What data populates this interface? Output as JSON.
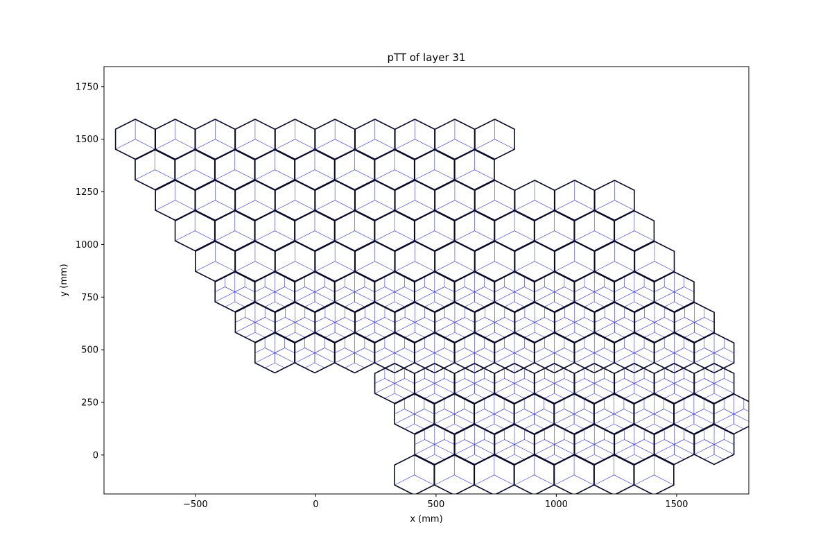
{
  "chart_data": {
    "type": "hexagonal-tiling",
    "title": "pTT of layer 31",
    "xlabel": "x (mm)",
    "ylabel": "y (mm)",
    "xlim": [
      -880,
      1800
    ],
    "ylim": [
      -185,
      1845
    ],
    "xticks": [
      {
        "value": -500,
        "label": "−500"
      },
      {
        "value": 0,
        "label": "0"
      },
      {
        "value": 500,
        "label": "500"
      },
      {
        "value": 1000,
        "label": "1000"
      },
      {
        "value": 1500,
        "label": "1500"
      }
    ],
    "yticks": [
      {
        "value": 0,
        "label": "0"
      },
      {
        "value": 250,
        "label": "250"
      },
      {
        "value": 500,
        "label": "500"
      },
      {
        "value": 750,
        "label": "750"
      },
      {
        "value": 1000,
        "label": "1000"
      },
      {
        "value": 1250,
        "label": "1250"
      },
      {
        "value": 1500,
        "label": "1500"
      },
      {
        "value": 1750,
        "label": "1750"
      }
    ],
    "grid": false,
    "cell_outline_color": "#0a0a2a",
    "subcell_color": "#3333ee",
    "hex_circumradius_mm": 95,
    "column_pitch_mm": 84,
    "fine_subdivision_rows": [
      5,
      6,
      7,
      8,
      9,
      10
    ],
    "rows": [
      {
        "y": 1500,
        "cols": [
          -750,
          -584,
          -418,
          -252,
          -86,
          80,
          246,
          412,
          578,
          744
        ]
      },
      {
        "y": 1355,
        "cols": [
          -668,
          -502,
          -336,
          -170,
          -4,
          162,
          328,
          494,
          660
        ]
      },
      {
        "y": 1210,
        "cols": [
          -584,
          -418,
          -252,
          -86,
          80,
          246,
          412,
          578,
          744,
          910,
          1076,
          1242
        ]
      },
      {
        "y": 1065,
        "cols": [
          -502,
          -336,
          -170,
          -4,
          162,
          328,
          494,
          660,
          826,
          992,
          1158,
          1324
        ]
      },
      {
        "y": 920,
        "cols": [
          -418,
          -252,
          -86,
          80,
          246,
          412,
          578,
          744,
          910,
          1076,
          1242,
          1408
        ]
      },
      {
        "y": 775,
        "cols": [
          -336,
          -170,
          -4,
          162,
          328,
          494,
          660,
          826,
          992,
          1158,
          1324,
          1490
        ]
      },
      {
        "y": 630,
        "cols": [
          -252,
          -86,
          80,
          246,
          412,
          578,
          744,
          910,
          1076,
          1242,
          1408,
          1574
        ]
      },
      {
        "y": 485,
        "cols": [
          -170,
          -4,
          162,
          328,
          494,
          660,
          826,
          992,
          1158,
          1324,
          1490,
          1656
        ]
      },
      {
        "y": 340,
        "cols": [
          328,
          494,
          660,
          826,
          992,
          1158,
          1324,
          1490,
          1656
        ]
      },
      {
        "y": 195,
        "cols": [
          410,
          576,
          742,
          908,
          1074,
          1240,
          1406,
          1572,
          1738
        ]
      },
      {
        "y": 50,
        "cols": [
          494,
          660,
          826,
          992,
          1158,
          1324,
          1490,
          1656
        ]
      },
      {
        "y": -95,
        "cols": [
          410,
          576,
          742,
          908,
          1074,
          1240,
          1406
        ]
      }
    ]
  }
}
